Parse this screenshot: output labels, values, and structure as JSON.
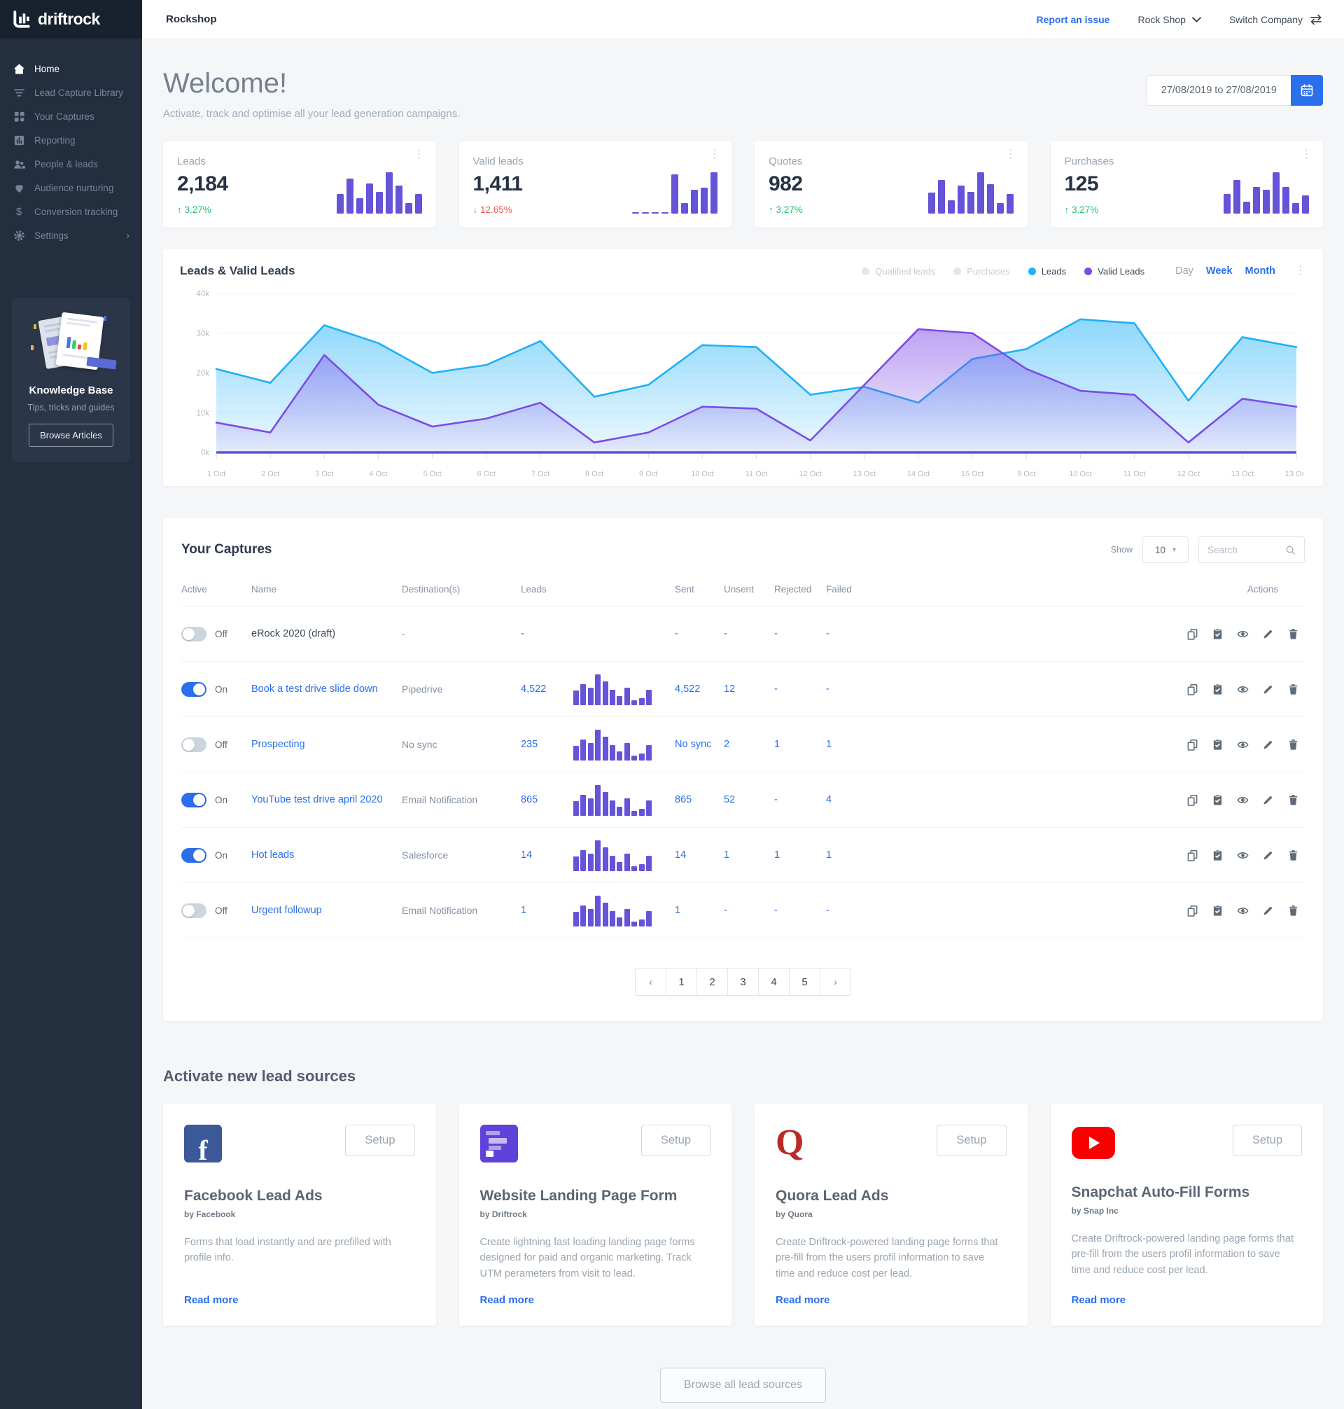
{
  "brand": "driftrock",
  "glyphs": {
    "kebab": "⋮",
    "chevron_right": "›",
    "caret_down": "▾"
  },
  "topbar": {
    "company": "Rockshop",
    "report_issue": "Report an issue",
    "account": "Rock Shop",
    "switch_company": "Switch Company"
  },
  "sidebar": {
    "items": [
      {
        "label": "Home",
        "state": "active"
      },
      {
        "label": "Lead Capture Library",
        "state": ""
      },
      {
        "label": "Your Captures",
        "state": ""
      },
      {
        "label": "Reporting",
        "state": ""
      },
      {
        "label": "People & leads",
        "state": ""
      },
      {
        "label": "Audience nurturing",
        "state": ""
      },
      {
        "label": "Conversion tracking",
        "state": ""
      },
      {
        "label": "Settings",
        "state": ""
      }
    ],
    "knowledge_base": {
      "title": "Knowledge Base",
      "subtitle": "Tips, tricks and guides",
      "button": "Browse Articles"
    }
  },
  "welcome": {
    "title": "Welcome!",
    "subtitle": "Activate, track and optimise all your lead generation campaigns.",
    "date_range": "27/08/2019 to 27/08/2019"
  },
  "stats": [
    {
      "label": "Leads",
      "value": "2,184",
      "arrow": "↑",
      "delta": "3.27%",
      "direction": "up",
      "bars": [
        45,
        80,
        35,
        70,
        50,
        95,
        65,
        25,
        45
      ]
    },
    {
      "label": "Valid leads",
      "value": "1,411",
      "arrow": "↓",
      "delta": "12.65%",
      "direction": "down",
      "bars": [
        4,
        4,
        4,
        4,
        90,
        25,
        55,
        60,
        95
      ]
    },
    {
      "label": "Quotes",
      "value": "982",
      "arrow": "↑",
      "delta": "3.27%",
      "direction": "up",
      "bars": [
        48,
        78,
        30,
        65,
        50,
        95,
        68,
        25,
        45
      ]
    },
    {
      "label": "Purchases",
      "value": "125",
      "arrow": "↑",
      "delta": "3.27%",
      "direction": "up",
      "bars": [
        45,
        78,
        28,
        62,
        55,
        95,
        62,
        25,
        42
      ]
    }
  ],
  "chart_data": {
    "type": "area",
    "title": "Leads & Valid Leads",
    "x": [
      "1 Oct",
      "2 Oct",
      "3 Oct",
      "4 Oct",
      "5 Oct",
      "6 Oct",
      "7 Oct",
      "8 Oct",
      "9 Oct",
      "10 Oct",
      "11 Oct",
      "12 Oct",
      "13 Oct",
      "14 Oct",
      "15 Oct",
      "9 Oct",
      "10 Oct",
      "11 Oct",
      "12 Oct",
      "13 Oct",
      "13 Oct"
    ],
    "ylim": [
      0,
      40
    ],
    "yticks": [
      "0k",
      "10k",
      "20k",
      "30k",
      "40k"
    ],
    "grid": true,
    "legend_position": "top-right",
    "series": [
      {
        "name": "Leads",
        "color": "#1fb0f8",
        "values": [
          21,
          17.5,
          32,
          27.5,
          20,
          22,
          28,
          14,
          17,
          27,
          26.5,
          14.5,
          16.5,
          12.5,
          23.5,
          26,
          33.5,
          32.5,
          13,
          29,
          26.5
        ]
      },
      {
        "name": "Valid Leads",
        "color": "#7d4ae8",
        "values": [
          7.5,
          5,
          24.5,
          12,
          6.5,
          8.5,
          12.5,
          2.5,
          5,
          11.5,
          11,
          3,
          17,
          31,
          30,
          21,
          15.5,
          14.5,
          2.5,
          13.5,
          11.5
        ]
      }
    ],
    "legend": [
      {
        "label": "Qualified leads",
        "color": "#e2e7ec",
        "state": "muted"
      },
      {
        "label": "Purchases",
        "color": "#e2e7ec",
        "state": "muted"
      },
      {
        "label": "Leads",
        "color": "#1fb0f8",
        "state": ""
      },
      {
        "label": "Valid Leads",
        "color": "#7d4ae8",
        "state": ""
      }
    ],
    "ranges": {
      "day": "Day",
      "week": "Week",
      "month": "Month"
    }
  },
  "captures": {
    "title": "Your Captures",
    "show_label": "Show",
    "page_size": "10",
    "search_placeholder": "Search",
    "columns": {
      "active": "Active",
      "name": "Name",
      "destination": "Destination(s)",
      "leads": "Leads",
      "sent": "Sent",
      "unsent": "Unsent",
      "rejected": "Rejected",
      "failed": "Failed",
      "actions": "Actions"
    },
    "spark": [
      45,
      65,
      55,
      95,
      75,
      48,
      28,
      55,
      15,
      22,
      48
    ],
    "rows": [
      {
        "active": false,
        "state": "Off",
        "name": "eRock 2020 (draft)",
        "name_class": "plain",
        "destination": "-",
        "leads": "-",
        "has_spark": false,
        "sent": "-",
        "unsent": "-",
        "rejected": "-",
        "failed": "-"
      },
      {
        "active": true,
        "state": "On",
        "name": "Book a test drive slide down",
        "name_class": "",
        "destination": "Pipedrive",
        "leads": "4,522",
        "has_spark": true,
        "sent": "4,522",
        "unsent": "12",
        "rejected": "-",
        "failed": "-"
      },
      {
        "active": false,
        "state": "Off",
        "name": "Prospecting",
        "name_class": "",
        "destination": "No sync",
        "leads": "235",
        "has_spark": true,
        "sent": "No sync",
        "unsent": "2",
        "rejected": "1",
        "failed": "1"
      },
      {
        "active": true,
        "state": "On",
        "name": "YouTube test drive april 2020",
        "name_class": "",
        "destination": "Email Notification",
        "leads": "865",
        "has_spark": true,
        "sent": "865",
        "unsent": "52",
        "rejected": "-",
        "failed": "4"
      },
      {
        "active": true,
        "state": "On",
        "name": "Hot leads",
        "name_class": "",
        "destination": "Salesforce",
        "leads": "14",
        "has_spark": true,
        "sent": "14",
        "unsent": "1",
        "rejected": "1",
        "failed": "1"
      },
      {
        "active": false,
        "state": "Off",
        "name": "Urgent followup",
        "name_class": "",
        "destination": "Email Notification",
        "leads": "1",
        "has_spark": true,
        "sent": "1",
        "unsent": "-",
        "rejected": "-",
        "failed": "-"
      }
    ],
    "pagination": {
      "prev": "‹",
      "pages": [
        "1",
        "2",
        "3",
        "4",
        "5"
      ],
      "next": "›"
    }
  },
  "lead_sources": {
    "heading": "Activate new lead sources",
    "setup": "Setup",
    "read_more": "Read more",
    "browse_all": "Browse  all lead sources",
    "cards": [
      {
        "title": "Facebook Lead Ads",
        "by": "by Facebook",
        "desc": "Forms that load instantly and are prefilled with profile info."
      },
      {
        "title": "Website Landing Page Form",
        "by": "by Driftrock",
        "desc": "Create lightning fast loading landing page forms designed for paid and organic marketing. Track UTM perameters from visit to lead."
      },
      {
        "title": "Quora Lead Ads",
        "by": "by Quora",
        "desc": "Create Driftrock-powered landing page forms that pre-fill from the users profil information to save time and reduce cost per lead."
      },
      {
        "title": "Snapchat Auto-Fill Forms",
        "by": "by Snap Inc",
        "desc": "Create Driftrock-powered landing page forms that pre-fill from the users profil information to save time and reduce cost per lead."
      }
    ]
  },
  "colors": {
    "accent_blue": "#2a6fec",
    "spark_purple": "#6553d8",
    "chart_blue": "#1fb0f8",
    "chart_purple": "#7d4ae8",
    "green": "#26c171",
    "red": "#f05b5b"
  }
}
